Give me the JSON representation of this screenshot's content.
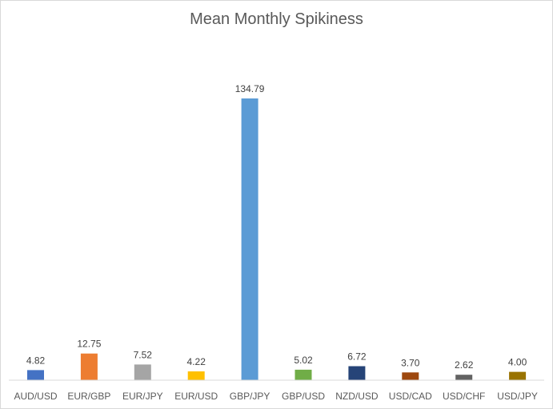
{
  "chart_data": {
    "type": "bar",
    "title": "Mean Monthly Spikiness",
    "xlabel": "",
    "ylabel": "",
    "categories": [
      "AUD/USD",
      "EUR/GBP",
      "EUR/JPY",
      "EUR/USD",
      "GBP/JPY",
      "GBP/USD",
      "NZD/USD",
      "USD/CAD",
      "USD/CHF",
      "USD/JPY"
    ],
    "values": [
      4.82,
      12.75,
      7.52,
      4.22,
      134.79,
      5.02,
      6.72,
      3.7,
      2.62,
      4.0
    ],
    "data_labels": [
      "4.82",
      "12.75",
      "7.52",
      "4.22",
      "134.79",
      "5.02",
      "6.72",
      "3.70",
      "2.62",
      "4.00"
    ],
    "colors": [
      "#4472c4",
      "#ed7d31",
      "#a5a5a5",
      "#ffc000",
      "#5b9bd5",
      "#70ad47",
      "#264478",
      "#9e480e",
      "#636363",
      "#997300"
    ],
    "ylim": [
      0,
      134.79
    ],
    "grid": false,
    "legend": "none"
  }
}
